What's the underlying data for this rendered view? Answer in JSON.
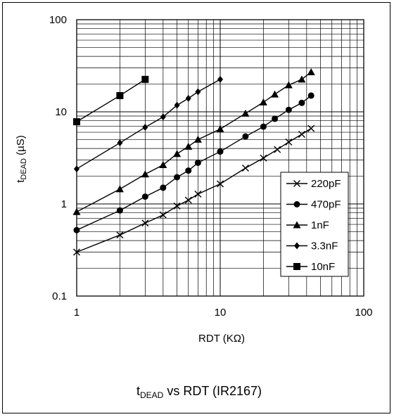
{
  "chart_data": {
    "type": "line",
    "title": {
      "main": "t",
      "sub": "DEAD",
      "rest": " vs RDT (IR2167)"
    },
    "xlabel": "RDT (KΩ)",
    "ylabel": {
      "main": "t",
      "sub": "DEAD",
      "rest": " (µS)"
    },
    "x_scale": "log",
    "y_scale": "log",
    "xlim": [
      1,
      100
    ],
    "ylim": [
      0.1,
      100
    ],
    "x_ticks": [
      "1",
      "10",
      "100"
    ],
    "y_ticks": [
      "0.1",
      "1",
      "10",
      "100"
    ],
    "grid": true,
    "legend_position": "bottom-right",
    "series": [
      {
        "name": "220pF",
        "marker": "x",
        "x": [
          1,
          2,
          3,
          4,
          5,
          6,
          7,
          10,
          15,
          20,
          25,
          30,
          37,
          43
        ],
        "y": [
          0.3,
          0.46,
          0.62,
          0.76,
          0.95,
          1.1,
          1.28,
          1.65,
          2.45,
          3.15,
          3.9,
          4.7,
          5.7,
          6.6
        ]
      },
      {
        "name": "470pF",
        "marker": "circle",
        "x": [
          1,
          2,
          3,
          4,
          5,
          6,
          7,
          10,
          15,
          20,
          24,
          30,
          37,
          43
        ],
        "y": [
          0.52,
          0.85,
          1.2,
          1.5,
          1.95,
          2.3,
          2.8,
          3.7,
          5.4,
          6.9,
          8.4,
          10.5,
          12.5,
          15
        ]
      },
      {
        "name": "1nF",
        "marker": "triangle",
        "x": [
          1,
          2,
          3,
          4,
          5,
          6,
          7,
          10,
          15,
          20,
          24,
          30,
          37,
          43
        ],
        "y": [
          0.82,
          1.45,
          2.1,
          2.65,
          3.5,
          4.2,
          5,
          6.5,
          9.6,
          12.7,
          15.5,
          19.5,
          22.5,
          27
        ]
      },
      {
        "name": "3.3nF",
        "marker": "diamond",
        "x": [
          1,
          2,
          3,
          4,
          5,
          6,
          7,
          10
        ],
        "y": [
          2.4,
          4.6,
          6.8,
          8.8,
          11.8,
          14,
          16.5,
          22.5
        ]
      },
      {
        "name": "10nF",
        "marker": "square",
        "x": [
          1,
          2,
          3
        ],
        "y": [
          7.8,
          15,
          22.5
        ]
      }
    ]
  }
}
